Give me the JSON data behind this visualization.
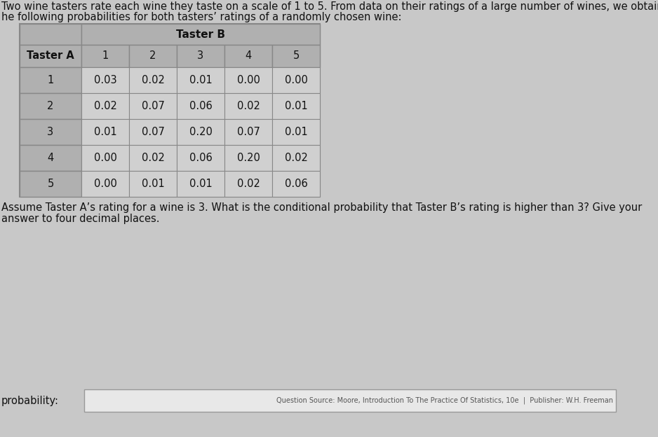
{
  "title_line1": "Two wine tasters rate each wine they taste on a scale of 1 to 5. From data on their ratings of a large number of wines, we obtain",
  "title_line2": "he following probabilities for both tasters’ ratings of a randomly chosen wine:",
  "taster_b_header": "Taster B",
  "taster_a_header": "Taster A",
  "col_headers": [
    "1",
    "2",
    "3",
    "4",
    "5"
  ],
  "row_headers": [
    "1",
    "2",
    "3",
    "4",
    "5"
  ],
  "table_data": [
    [
      0.03,
      0.02,
      0.01,
      0.0,
      0.0
    ],
    [
      0.02,
      0.07,
      0.06,
      0.02,
      0.01
    ],
    [
      0.01,
      0.07,
      0.2,
      0.07,
      0.01
    ],
    [
      0.0,
      0.02,
      0.06,
      0.2,
      0.02
    ],
    [
      0.0,
      0.01,
      0.01,
      0.02,
      0.06
    ]
  ],
  "question_line1": "Assume Taster A’s rating for a wine is 3. What is the conditional probability that Taster B’s rating is higher than 3? Give your",
  "question_line2": "answer to four decimal places.",
  "probability_label": "probability:",
  "source_text": "Question Source: Moore, Introduction To The Practice Of Statistics, 10e  |  Publisher: W.H. Freeman",
  "page_bg": "#c8c8c8",
  "table_outer_bg": "#b8b8b8",
  "table_header_bg": "#b0b0b0",
  "table_data_bg": "#d0d0d0",
  "table_border_color": "#888888",
  "text_dark": "#111111",
  "text_medium": "#222222",
  "answer_box_bg": "#e8e8e8",
  "answer_box_border": "#999999",
  "title_fontsize": 10.5,
  "table_fontsize": 10.5,
  "question_fontsize": 10.5,
  "prob_fontsize": 10.5,
  "source_fontsize": 7.0
}
